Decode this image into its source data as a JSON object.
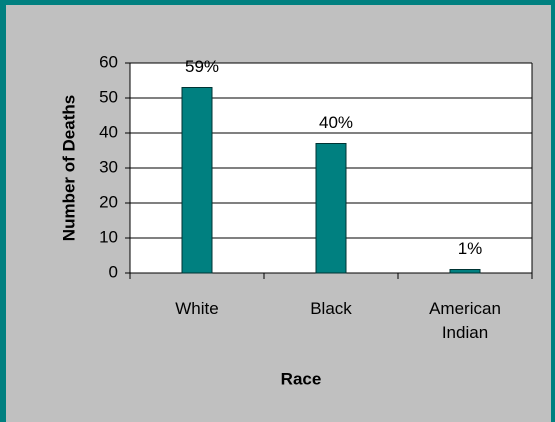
{
  "chart_data": {
    "type": "bar",
    "x_label": "Race",
    "y_label": "Number of Deaths",
    "categories": [
      "White",
      "Black",
      "American Indian"
    ],
    "values": [
      53,
      37,
      1
    ],
    "annotations": [
      "59%",
      "40%",
      "1%"
    ],
    "color": "#008080",
    "ylim": [
      0,
      60
    ],
    "yticks": [
      0,
      10,
      20,
      30,
      40,
      50,
      60
    ],
    "grid": true
  }
}
